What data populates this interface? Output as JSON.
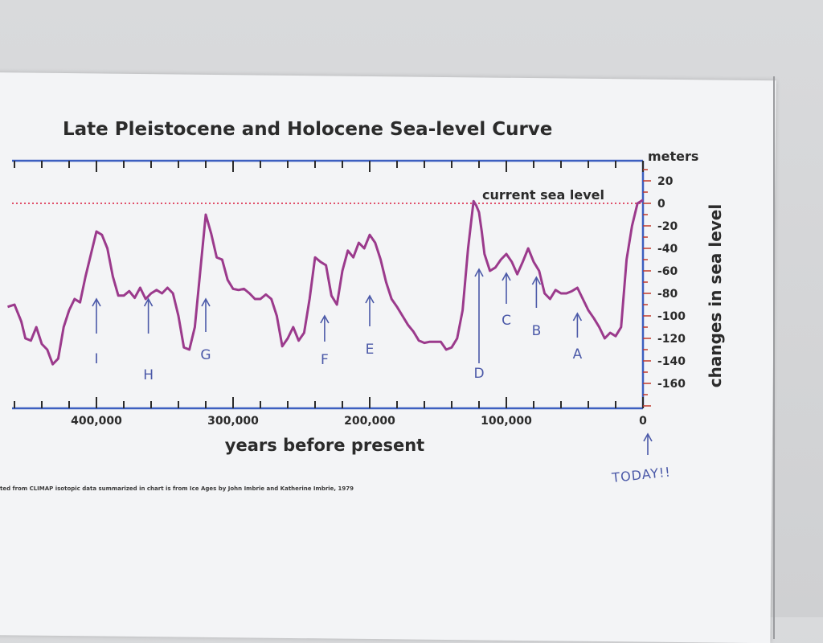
{
  "chart_data": {
    "type": "line",
    "title": "Late Pleistocene and Holocene Sea-level Curve",
    "xlabel": "years before present",
    "ylabel": "changes in sea level",
    "y_units": "meters",
    "xlim": [
      465000,
      0
    ],
    "ylim": [
      -180,
      30
    ],
    "x_ticks": [
      {
        "value": 400000,
        "label": "400,000"
      },
      {
        "value": 300000,
        "label": "300,000"
      },
      {
        "value": 200000,
        "label": "200,000"
      },
      {
        "value": 100000,
        "label": "100,000"
      },
      {
        "value": 0,
        "label": "0"
      }
    ],
    "y_ticks": [
      20,
      0,
      -20,
      -40,
      -60,
      -80,
      -100,
      -120,
      -140,
      -160
    ],
    "reference_line": {
      "value": 0,
      "label": "current sea level"
    },
    "series": [
      {
        "color": "#9b3a8c",
        "x": [
          465000,
          460000,
          455000,
          452000,
          448000,
          444000,
          440000,
          436000,
          432000,
          428000,
          424000,
          420000,
          416000,
          412000,
          408000,
          404000,
          400000,
          396000,
          392000,
          388000,
          384000,
          380000,
          376000,
          372000,
          368000,
          364000,
          360000,
          356000,
          352000,
          348000,
          344000,
          340000,
          336000,
          332000,
          328000,
          324000,
          320000,
          316000,
          312000,
          308000,
          304000,
          300000,
          296000,
          292000,
          288000,
          284000,
          280000,
          276000,
          272000,
          268000,
          264000,
          260000,
          256000,
          252000,
          248000,
          244000,
          240000,
          236000,
          232000,
          228000,
          224000,
          220000,
          216000,
          212000,
          208000,
          204000,
          200000,
          196000,
          192000,
          188000,
          184000,
          180000,
          176000,
          172000,
          168000,
          164000,
          160000,
          156000,
          152000,
          148000,
          144000,
          140000,
          136000,
          132000,
          128000,
          124000,
          122000,
          120000,
          118000,
          116000,
          112000,
          108000,
          104000,
          100000,
          96000,
          92000,
          88000,
          84000,
          80000,
          76000,
          72000,
          68000,
          64000,
          60000,
          56000,
          52000,
          48000,
          44000,
          40000,
          36000,
          32000,
          28000,
          24000,
          20000,
          16000,
          12000,
          8000,
          4000,
          0
        ],
        "y": [
          -92,
          -90,
          -105,
          -120,
          -122,
          -110,
          -125,
          -130,
          -143,
          -138,
          -110,
          -95,
          -85,
          -88,
          -65,
          -45,
          -25,
          -28,
          -40,
          -65,
          -82,
          -82,
          -78,
          -84,
          -75,
          -85,
          -80,
          -77,
          -80,
          -75,
          -80,
          -100,
          -128,
          -130,
          -110,
          -60,
          -10,
          -27,
          -48,
          -50,
          -68,
          -76,
          -77,
          -76,
          -80,
          -85,
          -85,
          -81,
          -85,
          -100,
          -127,
          -120,
          -110,
          -122,
          -115,
          -85,
          -48,
          -52,
          -55,
          -82,
          -90,
          -60,
          -42,
          -48,
          -35,
          -40,
          -28,
          -35,
          -50,
          -70,
          -85,
          -92,
          -100,
          -108,
          -114,
          -122,
          -124,
          -123,
          -123,
          -123,
          -130,
          -128,
          -120,
          -95,
          -40,
          2,
          -2,
          -8,
          -25,
          -45,
          -60,
          -57,
          -50,
          -45,
          -52,
          -63,
          -52,
          -40,
          -52,
          -60,
          -80,
          -85,
          -77,
          -80,
          -80,
          -78,
          -75,
          -85,
          -95,
          -102,
          -110,
          -120,
          -115,
          -118,
          -110,
          -50,
          -20,
          0,
          3
        ]
      }
    ]
  },
  "annotations": [
    {
      "label": "I",
      "x": 400000,
      "arrow": "short"
    },
    {
      "label": "H",
      "x": 362000,
      "arrow": "short"
    },
    {
      "label": "G",
      "x": 320000,
      "arrow": "short"
    },
    {
      "label": "F",
      "x": 233000,
      "arrow": "short"
    },
    {
      "label": "E",
      "x": 200000,
      "arrow": "short"
    },
    {
      "label": "D",
      "x": 120000,
      "arrow": "long"
    },
    {
      "label": "C",
      "x": 100000,
      "arrow": "short"
    },
    {
      "label": "B",
      "x": 78000,
      "arrow": "short"
    },
    {
      "label": "A",
      "x": 48000,
      "arrow": "short"
    }
  ],
  "today_note": "TODAY!!",
  "credit": "ted from CLIMAP isotopic data summarized in chart is from Ice Ages by John Imbrie and Katherine Imbrie, 1979"
}
